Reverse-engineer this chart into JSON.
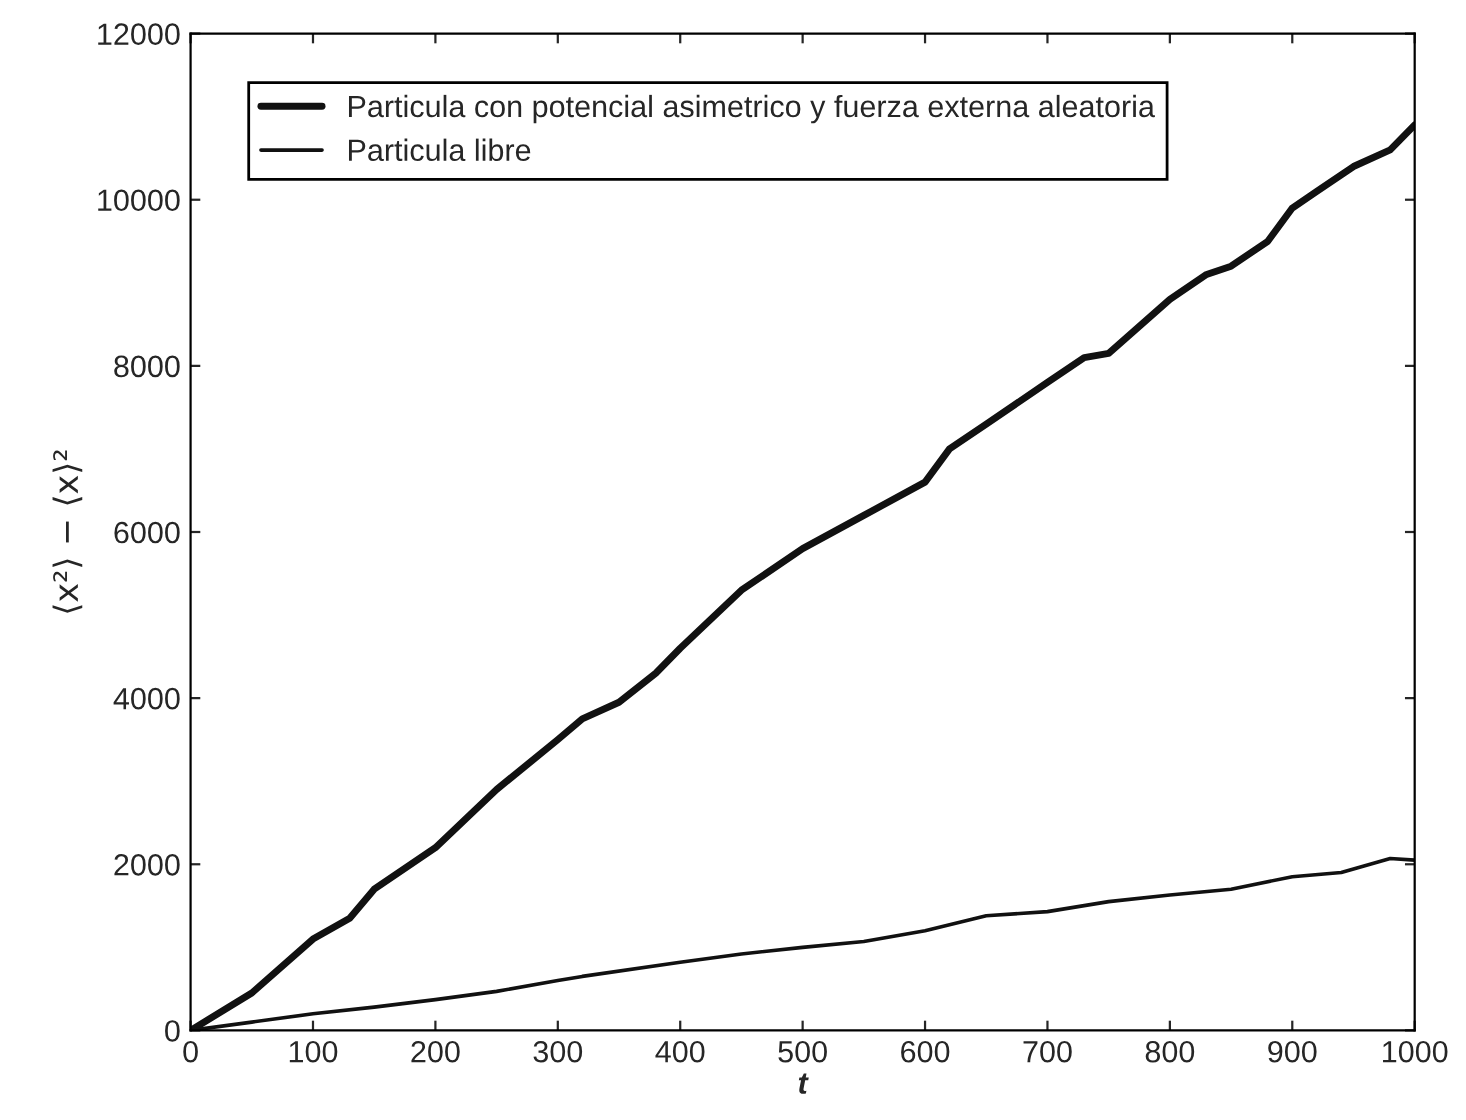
{
  "chart_data": {
    "type": "line",
    "xlabel": "t",
    "ylabel": "⟨x²⟩ − ⟨x⟩²",
    "x": [
      0,
      50,
      100,
      130,
      150,
      200,
      250,
      300,
      320,
      350,
      380,
      400,
      450,
      500,
      550,
      600,
      620,
      650,
      700,
      730,
      750,
      800,
      830,
      850,
      880,
      900,
      920,
      950,
      980,
      1000
    ],
    "series": [
      {
        "name": "Particula con potencial asimetrico y fuerza externa aleatoria",
        "color": "#111111",
        "values": [
          0,
          450,
          1100,
          1350,
          1700,
          2200,
          2900,
          3500,
          3750,
          3950,
          4300,
          4600,
          5300,
          5800,
          6200,
          6600,
          7000,
          7300,
          7800,
          8100,
          8150,
          8800,
          9100,
          9200,
          9500,
          9900,
          10100,
          10400,
          10600,
          10900
        ]
      },
      {
        "name": "Particula libre",
        "color": "#111111",
        "x": [
          0,
          50,
          100,
          150,
          200,
          250,
          300,
          320,
          400,
          450,
          500,
          550,
          600,
          650,
          700,
          750,
          800,
          850,
          900,
          940,
          980,
          1000
        ],
        "values": [
          0,
          100,
          200,
          280,
          370,
          470,
          600,
          650,
          820,
          920,
          1000,
          1070,
          1200,
          1380,
          1430,
          1550,
          1630,
          1700,
          1850,
          1900,
          2070,
          2050
        ]
      }
    ],
    "xlim": [
      0,
      1000
    ],
    "xticks": [
      0,
      100,
      200,
      300,
      400,
      500,
      600,
      700,
      800,
      900,
      1000
    ],
    "ylim": [
      0,
      12000
    ],
    "yticks": [
      0,
      2000,
      4000,
      6000,
      8000,
      10000,
      12000
    ],
    "grid": false,
    "legend": "top left",
    "marker": "none",
    "line_style": "solid"
  }
}
